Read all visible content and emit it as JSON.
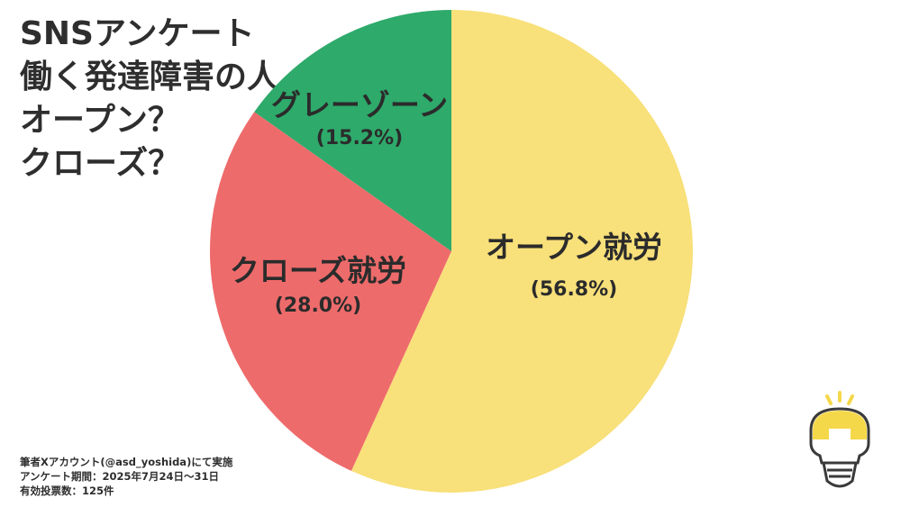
{
  "title": {
    "lines": [
      "SNSアンケート",
      "働く発達障害の人",
      "オープン？",
      "クローズ？"
    ]
  },
  "chart_data": {
    "type": "pie",
    "title": "SNSアンケート 働く発達障害の人 オープン？ クローズ？",
    "slices": [
      {
        "label": "オープン就労",
        "value": 56.8,
        "pct_text": "(56.8%)",
        "color": "#f8e07a"
      },
      {
        "label": "クローズ就労",
        "value": 28.0,
        "pct_text": "(28.0%)",
        "color": "#ee6b6b"
      },
      {
        "label": "グレーゾーン",
        "value": 15.2,
        "pct_text": "(15.2%)",
        "color": "#2eaa6b"
      }
    ],
    "start": "top",
    "direction": "clockwise"
  },
  "footer": {
    "line1": "筆者Xアカウント(@asd_yoshida)にて実施",
    "line2": "アンケート期間：2025年7月24日～31日",
    "line3": "有効投票数：125件"
  },
  "colors": {
    "open": "#f8e07a",
    "close": "#ee6b6b",
    "gray": "#2eaa6b",
    "logo_outline": "#3a3a3a",
    "logo_fill": "#f5d84a"
  },
  "logo": {
    "icon": "lightbulb-icon"
  }
}
